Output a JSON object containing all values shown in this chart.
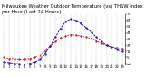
{
  "title": "Milwaukee Weather Outdoor Temperature (vs) THSW Index per Hour (Last 24 Hours)",
  "title_fontsize": 3.8,
  "temp_color": "#cc0000",
  "thsw_color": "#0000cc",
  "background_color": "#ffffff",
  "grid_color": "#999999",
  "ylim": [
    -5,
    75
  ],
  "yticks": [
    -5,
    5,
    15,
    25,
    35,
    45,
    55,
    65,
    75
  ],
  "ytick_fontsize": 3.0,
  "xtick_fontsize": 2.8,
  "hours": [
    0,
    1,
    2,
    3,
    4,
    5,
    6,
    7,
    8,
    9,
    10,
    11,
    12,
    13,
    14,
    15,
    16,
    17,
    18,
    19,
    20,
    21,
    22,
    23
  ],
  "temp": [
    5,
    3,
    3,
    2,
    2,
    3,
    5,
    9,
    16,
    24,
    31,
    37,
    40,
    42,
    41,
    40,
    38,
    36,
    32,
    28,
    25,
    23,
    21,
    19
  ],
  "thsw": [
    -2,
    -3,
    -4,
    -5,
    -6,
    -4,
    -2,
    2,
    12,
    24,
    38,
    52,
    63,
    67,
    65,
    60,
    53,
    46,
    38,
    31,
    25,
    22,
    18,
    15
  ],
  "xtick_labels": [
    "0",
    "1",
    "2",
    "3",
    "4",
    "5",
    "6",
    "7",
    "8",
    "9",
    "10",
    "11",
    "12",
    "13",
    "14",
    "15",
    "16",
    "17",
    "18",
    "19",
    "20",
    "21",
    "22",
    "23"
  ]
}
